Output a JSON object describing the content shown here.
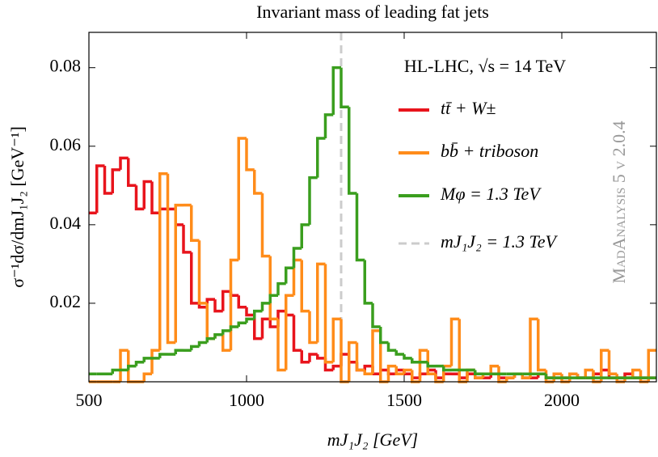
{
  "chart_data": {
    "type": "histogram",
    "title": "Invariant mass of leading fat jets",
    "x_label": "mJ₁J₂ [GeV]",
    "y_label": "σ⁻¹dσ/dmJ₁J₂ [GeV⁻¹]",
    "annotation": "HL-LHC, √s = 14 TeV",
    "watermark": "MadAnalysis 5 v 2.0.4",
    "legend": "upper right",
    "xlim": [
      500,
      2300
    ],
    "ylim": [
      0,
      0.089
    ],
    "xticks": [
      500,
      1000,
      1500,
      2000
    ],
    "yticks": [
      0.02,
      0.04,
      0.06,
      0.08
    ],
    "bins": [
      500,
      525,
      550,
      575,
      600,
      625,
      650,
      675,
      700,
      725,
      750,
      775,
      800,
      825,
      850,
      875,
      900,
      925,
      950,
      975,
      1000,
      1025,
      1050,
      1075,
      1100,
      1125,
      1150,
      1175,
      1200,
      1225,
      1250,
      1275,
      1300,
      1325,
      1350,
      1375,
      1400,
      1425,
      1450,
      1475,
      1500,
      1525,
      1550,
      1575,
      1600,
      1625,
      1650,
      1675,
      1700,
      1725,
      1750,
      1775,
      1800,
      1825,
      1850,
      1875,
      1900,
      1925,
      1950,
      1975,
      2000,
      2025,
      2050,
      2075,
      2100,
      2125,
      2150,
      2175,
      2200,
      2225,
      2250,
      2275,
      2300
    ],
    "series": [
      {
        "name": "tt̄ + W±",
        "color": "#e8141c",
        "values": [
          0.043,
          0.055,
          0.048,
          0.054,
          0.057,
          0.05,
          0.044,
          0.051,
          0.043,
          0.044,
          0.044,
          0.04,
          0.033,
          0.02,
          0.019,
          0.021,
          0.018,
          0.023,
          0.022,
          0.019,
          0.017,
          0.011,
          0.016,
          0.014,
          0.018,
          0.017,
          0.008,
          0.005,
          0.007,
          0.006,
          0.003,
          0.004,
          0.007,
          0.005,
          0.003,
          0.004,
          0.002,
          0.003,
          0.002,
          0.003,
          0.002,
          0.001,
          0.002,
          0.003,
          0.001,
          0.002,
          0.002,
          0.001,
          0.002,
          0.001,
          0.001,
          0.002,
          0.001,
          0.001,
          0.002,
          0.001,
          0.001,
          0.002,
          0.001,
          0.001,
          0.001,
          0.002,
          0.001,
          0.001,
          0.002,
          0.003,
          0.001,
          0.001,
          0.002,
          0.001,
          0.001,
          0.001
        ]
      },
      {
        "name": "bb̄ + triboson",
        "color": "#ff8c1a",
        "values": [
          0,
          0,
          0,
          0,
          0.008,
          0,
          0,
          0.002,
          0.008,
          0.053,
          0.01,
          0.045,
          0.045,
          0.036,
          0.02,
          0.011,
          0.012,
          0.008,
          0.031,
          0.062,
          0.054,
          0.048,
          0.032,
          0.016,
          0.003,
          0.022,
          0.031,
          0.018,
          0.01,
          0.03,
          0.005,
          0.016,
          0,
          0.01,
          0.003,
          0.002,
          0.013,
          0,
          0.004,
          0.002,
          0.003,
          0,
          0.008,
          0.002,
          0,
          0.004,
          0.016,
          0,
          0.003,
          0.001,
          0.002,
          0.004,
          0,
          0.001,
          0.002,
          0.001,
          0.016,
          0.003,
          0,
          0.002,
          0,
          0.002,
          0.001,
          0.003,
          0,
          0.008,
          0.002,
          0,
          0.001,
          0.003,
          0,
          0.008
        ]
      },
      {
        "name": "Mφ = 1.3 TeV",
        "color": "#3a9e1e",
        "values": [
          0.002,
          0.002,
          0.002,
          0.003,
          0.003,
          0.004,
          0.005,
          0.006,
          0.006,
          0.007,
          0.007,
          0.008,
          0.008,
          0.009,
          0.01,
          0.011,
          0.012,
          0.013,
          0.014,
          0.015,
          0.016,
          0.018,
          0.02,
          0.022,
          0.025,
          0.029,
          0.034,
          0.04,
          0.052,
          0.062,
          0.068,
          0.08,
          0.07,
          0.048,
          0.031,
          0.02,
          0.014,
          0.01,
          0.008,
          0.007,
          0.006,
          0.005,
          0.005,
          0.004,
          0.004,
          0.003,
          0.003,
          0.003,
          0.003,
          0.002,
          0.002,
          0.002,
          0.002,
          0.002,
          0.002,
          0.002,
          0.002,
          0.002,
          0.001,
          0.001,
          0.001,
          0.001,
          0.001,
          0.001,
          0.001,
          0.001,
          0.001,
          0.001,
          0.001,
          0.001,
          0.001,
          0.001
        ]
      }
    ],
    "reference_line": {
      "name": "mJ₁J₂ = 1.3 TeV",
      "x": 1300,
      "color": "#cccccc",
      "dashed": true
    }
  }
}
